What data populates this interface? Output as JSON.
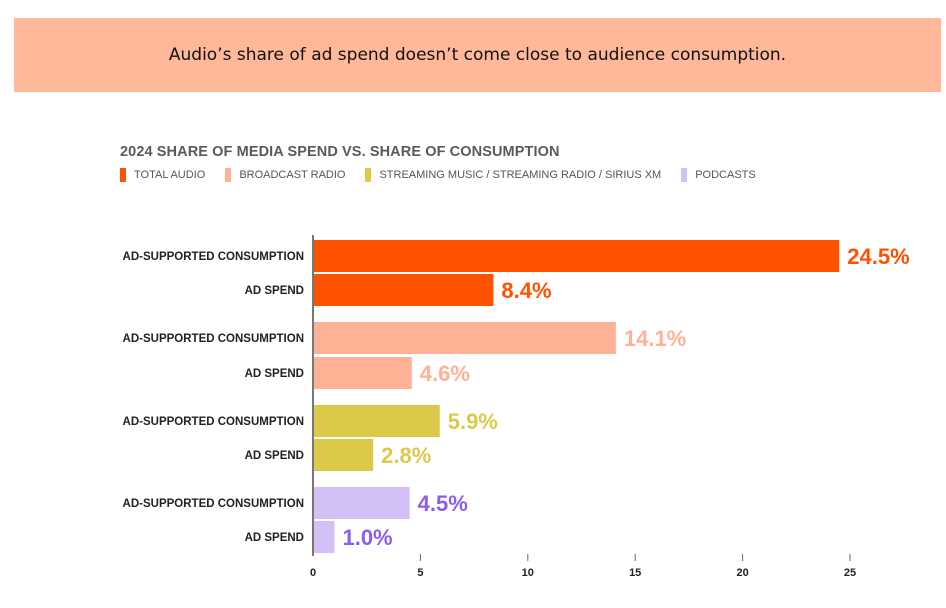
{
  "banner": {
    "text": "Audio’s share of ad spend doesn’t come close to audience consumption."
  },
  "chart_data": {
    "type": "bar",
    "orientation": "horizontal",
    "title": "2024 SHARE OF MEDIA  SPEND VS. SHARE OF CONSUMPTION",
    "legend": [
      {
        "name": "TOTAL AUDIO",
        "color": "#ff5200"
      },
      {
        "name": "BROADCAST RADIO",
        "color": "#ffb196"
      },
      {
        "name": "STREAMING MUSIC / STREAMING RADIO / SIRIUS XM",
        "color": "#dcc94a"
      },
      {
        "name": "PODCASTS",
        "color": "#d3c0f7"
      }
    ],
    "legend_position": "top-left",
    "groups": [
      {
        "series": "TOTAL AUDIO",
        "color": "#ff5200",
        "label_color": "#ff5200",
        "bars": [
          {
            "category": "AD-SUPPORTED CONSUMPTION",
            "value": 24.5,
            "label": "24.5%"
          },
          {
            "category": "AD SPEND",
            "value": 8.4,
            "label": "8.4%"
          }
        ]
      },
      {
        "series": "BROADCAST RADIO",
        "color": "#ffb196",
        "label_color": "#ffb196",
        "bars": [
          {
            "category": "AD-SUPPORTED CONSUMPTION",
            "value": 14.1,
            "label": "14.1%"
          },
          {
            "category": "AD SPEND",
            "value": 4.6,
            "label": "4.6%"
          }
        ]
      },
      {
        "series": "STREAMING MUSIC / STREAMING RADIO / SIRIUS XM",
        "color": "#dcc94a",
        "label_color": "#dcc94a",
        "bars": [
          {
            "category": "AD-SUPPORTED CONSUMPTION",
            "value": 5.9,
            "label": "5.9%"
          },
          {
            "category": "AD SPEND",
            "value": 2.8,
            "label": "2.8%"
          }
        ]
      },
      {
        "series": "PODCASTS",
        "color": "#d3c0f7",
        "label_color": "#8b5cf0",
        "bars": [
          {
            "category": "AD-SUPPORTED CONSUMPTION",
            "value": 4.5,
            "label": "4.5%"
          },
          {
            "category": "AD SPEND",
            "value": 1.0,
            "label": "1.0%"
          }
        ]
      }
    ],
    "xlim": [
      0,
      25
    ],
    "xticks": [
      "0",
      "5",
      "10",
      "15",
      "20",
      "25"
    ],
    "grid": false
  }
}
